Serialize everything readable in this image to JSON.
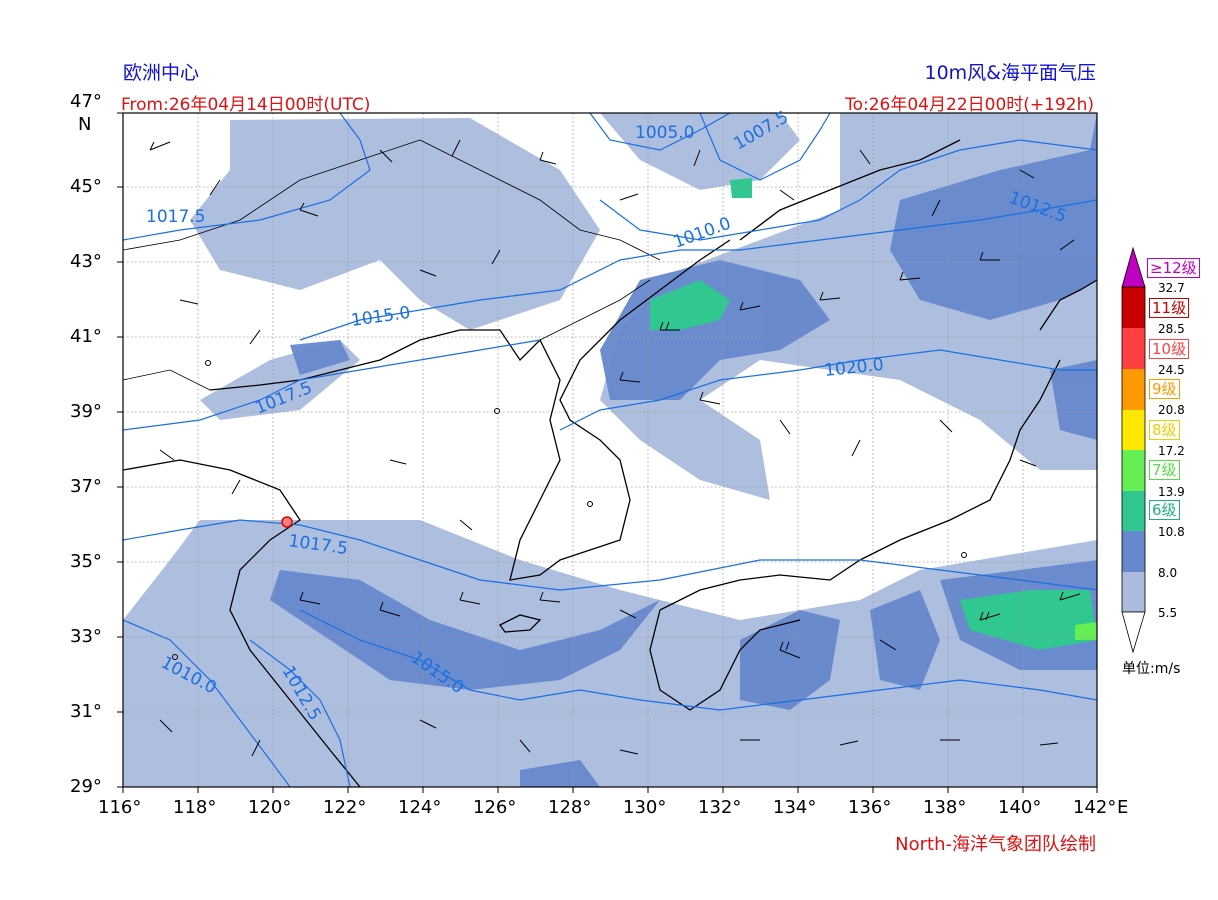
{
  "header": {
    "source": "欧洲中心",
    "product": "10m风&海平面气压",
    "from": "From:26年04月14日00时(UTC)",
    "to": "To:26年04月22日00时(+192h)"
  },
  "footer": {
    "credit": "North-海洋气象团队绘制"
  },
  "axes": {
    "lat_ticks": [
      "47°",
      "45°",
      "43°",
      "41°",
      "39°",
      "37°",
      "35°",
      "33°",
      "31°",
      "29°"
    ],
    "lat_unit": "N",
    "lon_ticks": [
      "116°",
      "118°",
      "120°",
      "122°",
      "124°",
      "126°",
      "128°",
      "130°",
      "132°",
      "134°",
      "136°",
      "138°",
      "140°",
      "142°"
    ],
    "lon_unit": "E"
  },
  "isobar_labels": [
    "1005.0",
    "1007.5",
    "1010.0",
    "1012.5",
    "1017.5",
    "1015.0",
    "1020.0",
    "1017.5",
    "1017.5",
    "1010.0",
    "1012.5",
    "1015.0"
  ],
  "legend": {
    "top_grade": "≥12级",
    "grades": [
      "11级",
      "10级",
      "9级",
      "8级",
      "7级",
      "6级"
    ],
    "thresholds": [
      "32.7",
      "28.5",
      "24.5",
      "20.8",
      "17.2",
      "13.9",
      "10.8",
      "8.0",
      "5.5"
    ],
    "unit": "单位:m/s",
    "colors": {
      "c12": "#c000c0",
      "c11": "#c80000",
      "c10": "#ff4040",
      "c9": "#ff9a00",
      "c8": "#ffe800",
      "c7": "#66ee55",
      "c6": "#30c890",
      "c5": "#6688cc",
      "c4": "#aabbdd"
    }
  }
}
